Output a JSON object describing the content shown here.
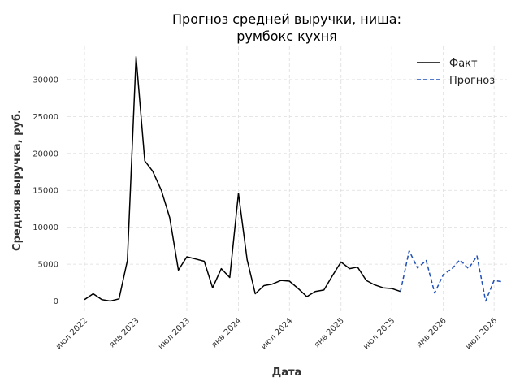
{
  "chart_data": {
    "type": "line",
    "title_line1": "Прогноз средней выручки, ниша:",
    "title_line2": "румбокс кухня",
    "xlabel": "Дата",
    "ylabel": "Средняя выручка, руб.",
    "grid": true,
    "legend_position": "top-right",
    "ylim": [
      -1700,
      34500
    ],
    "yticks": [
      0,
      5000,
      10000,
      15000,
      20000,
      25000,
      30000
    ],
    "xlim": [
      "2022-05-01",
      "2026-08-16"
    ],
    "xticks": [
      {
        "date": "2022-07-01",
        "label": "июл 2022"
      },
      {
        "date": "2023-01-01",
        "label": "янв 2023"
      },
      {
        "date": "2023-07-01",
        "label": "июл 2023"
      },
      {
        "date": "2024-01-01",
        "label": "янв 2024"
      },
      {
        "date": "2024-07-01",
        "label": "июл 2024"
      },
      {
        "date": "2025-01-01",
        "label": "янв 2025"
      },
      {
        "date": "2025-07-01",
        "label": "июл 2025"
      },
      {
        "date": "2026-01-01",
        "label": "янв 2026"
      },
      {
        "date": "2026-07-01",
        "label": "июл 2026"
      }
    ],
    "series": [
      {
        "name": "Факт",
        "color": "#000000",
        "style": "solid",
        "x": [
          "2022-07-01",
          "2022-08-01",
          "2022-09-01",
          "2022-10-01",
          "2022-11-01",
          "2022-12-01",
          "2023-01-01",
          "2023-02-01",
          "2023-03-01",
          "2023-04-01",
          "2023-05-01",
          "2023-06-01",
          "2023-07-01",
          "2023-08-01",
          "2023-09-01",
          "2023-10-01",
          "2023-11-01",
          "2023-12-01",
          "2024-01-01",
          "2024-02-01",
          "2024-03-01",
          "2024-04-01",
          "2024-05-01",
          "2024-06-01",
          "2024-07-01",
          "2024-08-01",
          "2024-09-01",
          "2024-10-01",
          "2024-11-01",
          "2024-12-01",
          "2025-01-01",
          "2025-02-01",
          "2025-03-01",
          "2025-04-01",
          "2025-05-01",
          "2025-06-01",
          "2025-07-01",
          "2025-08-01"
        ],
        "values": [
          200,
          1000,
          200,
          0,
          300,
          5500,
          33100,
          19000,
          17600,
          15000,
          11300,
          4200,
          6000,
          5700,
          5400,
          1800,
          4400,
          3200,
          14600,
          5600,
          1000,
          2100,
          2300,
          2800,
          2700,
          1700,
          600,
          1300,
          1500,
          3400,
          5300,
          4400,
          4600,
          2800,
          2200,
          1800,
          1700,
          1300
        ]
      },
      {
        "name": "Прогноз",
        "color": "#1f4fb8",
        "style": "dashed",
        "x": [
          "2025-08-01",
          "2025-09-01",
          "2025-10-01",
          "2025-11-01",
          "2025-12-01",
          "2026-01-01",
          "2026-02-01",
          "2026-03-01",
          "2026-04-01",
          "2026-05-01",
          "2026-06-01",
          "2026-07-01",
          "2026-08-01"
        ],
        "values": [
          1300,
          6800,
          4500,
          5500,
          1100,
          3600,
          4400,
          5600,
          4400,
          6100,
          0,
          2800,
          2600
        ]
      }
    ]
  }
}
